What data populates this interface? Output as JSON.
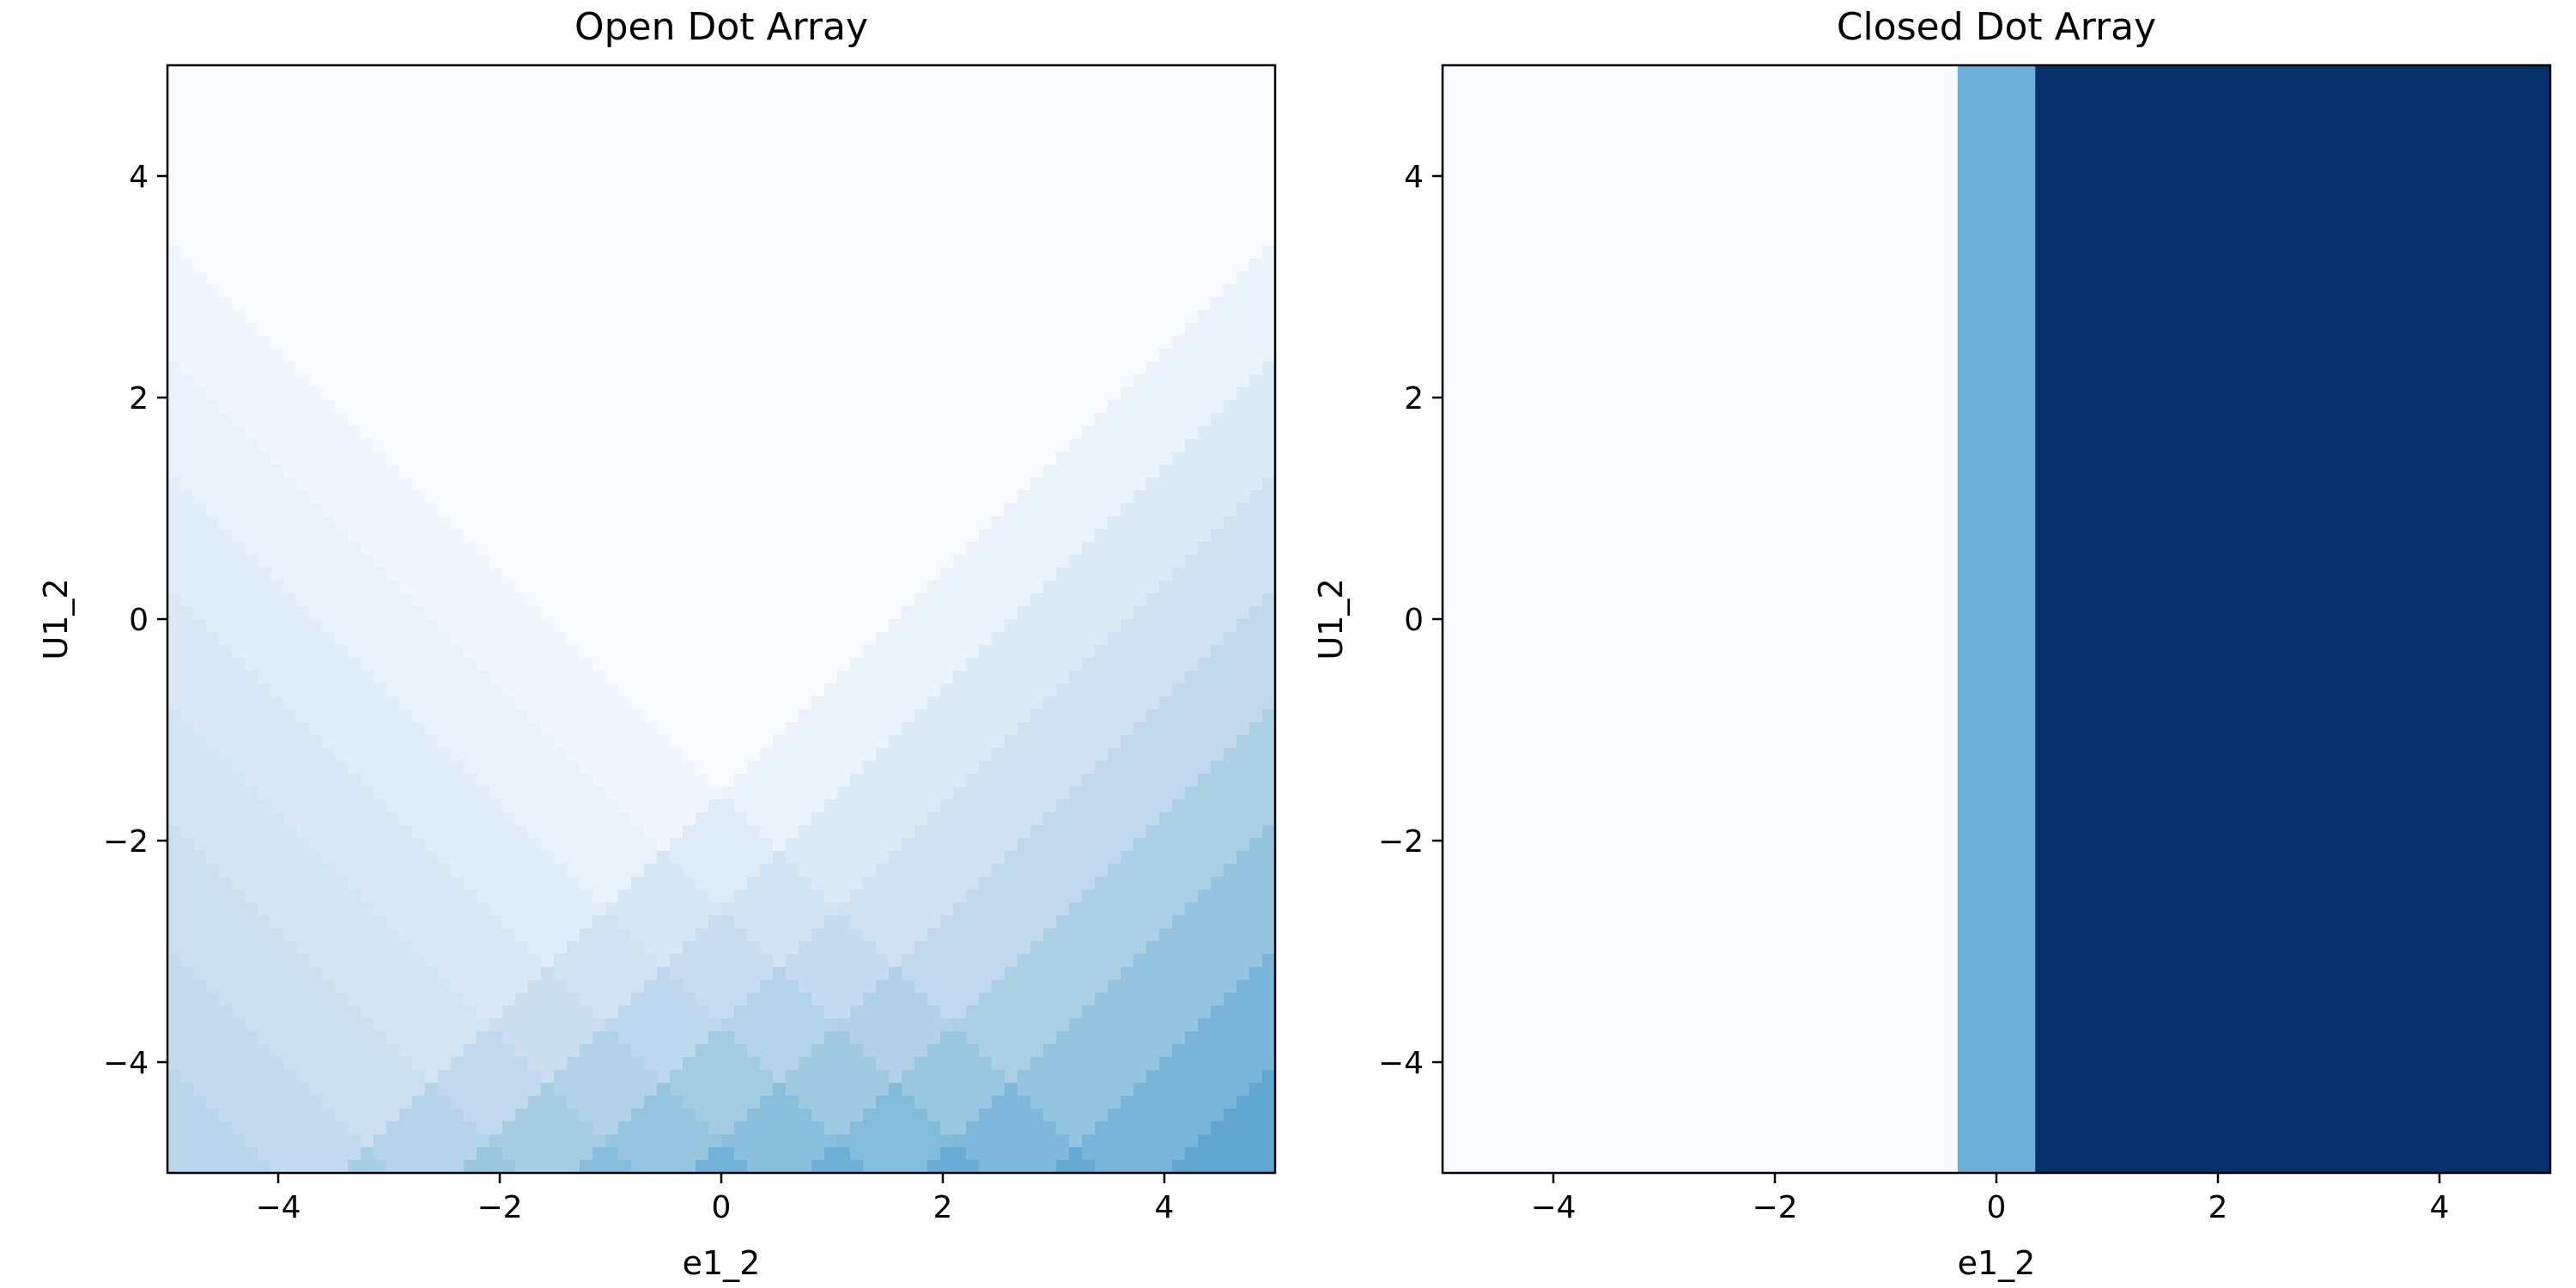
{
  "chart_data": [
    {
      "type": "heatmap",
      "title": "Open Dot Array",
      "xlabel": "e1_2",
      "ylabel": "U1_2",
      "xlim": [
        -5,
        5
      ],
      "ylim": [
        -5,
        5
      ],
      "xticks": [
        -4,
        -2,
        0,
        2,
        4
      ],
      "yticks": [
        -4,
        -2,
        0,
        2,
        4
      ],
      "colormap": "Blues",
      "field": "level = floor((-y + |x|) / 1.06) + floor((x - y) / 1.06), bucketed into diagonal bands forming a V opening upward from near (0,-0.5)",
      "levels": {
        "min": 0,
        "max": 15
      },
      "grid": false
    },
    {
      "type": "heatmap",
      "title": "Closed Dot Array",
      "xlabel": "e1_2",
      "ylabel": "U1_2",
      "xlim": [
        -5,
        5
      ],
      "ylim": [
        -5,
        5
      ],
      "xticks": [
        -4,
        -2,
        0,
        2,
        4
      ],
      "yticks": [
        -4,
        -2,
        0,
        2,
        4
      ],
      "colormap": "Blues",
      "bands": [
        {
          "x_from": -5,
          "x_to": -0.35,
          "color": "#f7fbff"
        },
        {
          "x_from": -0.35,
          "x_to": 0.35,
          "color": "#6baed6"
        },
        {
          "x_from": 0.35,
          "x_to": 5,
          "color": "#08306b"
        }
      ],
      "grid": false
    }
  ]
}
